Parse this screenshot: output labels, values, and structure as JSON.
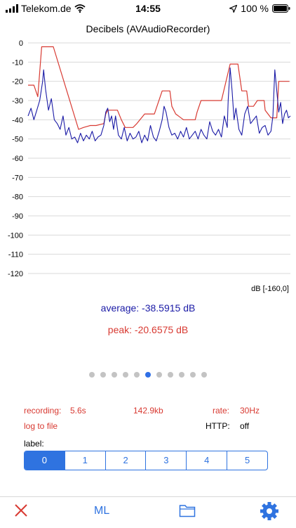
{
  "status_bar": {
    "carrier": "Telekom.de",
    "time": "14:55",
    "battery": "100 %"
  },
  "chart_data": {
    "type": "line",
    "title": "Decibels (AVAudioRecorder)",
    "ylim": [
      -120,
      0
    ],
    "y_ticks": [
      "0",
      "-10",
      "-20",
      "-30",
      "-40",
      "-50",
      "-60",
      "-70",
      "-80",
      "-90",
      "-100",
      "-110",
      "-120"
    ],
    "xlim": [
      0,
      270
    ],
    "grid": true,
    "unit_label": "dB [-160,0]",
    "series": [
      {
        "color": "#d83a32",
        "x": [
          0,
          6,
          10,
          14,
          17,
          20,
          26,
          52,
          57,
          64,
          70,
          78,
          80,
          82,
          90,
          92,
          96,
          100,
          104,
          108,
          112,
          120,
          130,
          138,
          142,
          146,
          148,
          152,
          160,
          166,
          172,
          174,
          178,
          184,
          192,
          199,
          208,
          212,
          216,
          220,
          225,
          227,
          232,
          236,
          239,
          243,
          244,
          247,
          250,
          254,
          256,
          258,
          262,
          264,
          269
        ],
        "values": [
          -22,
          -22,
          -28,
          -2,
          -2,
          -2,
          -2,
          -45,
          -44,
          -43,
          -43,
          -42,
          -37,
          -35,
          -35,
          -35,
          -40,
          -44,
          -44,
          -44,
          -42,
          -37,
          -37,
          -25,
          -25,
          -25,
          -33,
          -37,
          -40,
          -40,
          -40,
          -36,
          -30,
          -30,
          -30,
          -30,
          -11,
          -11,
          -11,
          -25,
          -25,
          -33,
          -33,
          -30,
          -30,
          -30,
          -35,
          -37,
          -39,
          -39,
          -39,
          -20,
          -20,
          -20,
          -20
        ]
      },
      {
        "color": "#1a1aa6",
        "x": [
          0,
          3,
          6,
          9,
          12,
          15,
          16,
          18,
          21,
          24,
          27,
          30,
          33,
          36,
          39,
          42,
          45,
          48,
          51,
          54,
          57,
          60,
          63,
          66,
          69,
          72,
          75,
          78,
          80,
          82,
          84,
          86,
          88,
          90,
          93,
          96,
          99,
          102,
          105,
          108,
          111,
          114,
          117,
          120,
          123,
          126,
          129,
          132,
          135,
          138,
          140,
          142,
          145,
          148,
          151,
          154,
          157,
          160,
          163,
          166,
          169,
          172,
          175,
          178,
          181,
          184,
          187,
          190,
          193,
          196,
          199,
          202,
          205,
          206,
          208,
          210,
          212,
          214,
          217,
          220,
          223,
          226,
          229,
          232,
          235,
          238,
          241,
          244,
          247,
          250,
          252,
          254,
          256,
          258,
          260,
          262,
          264,
          266,
          268,
          270
        ],
        "values": [
          -38,
          -34,
          -40,
          -35,
          -30,
          -20,
          -14,
          -24,
          -35,
          -29,
          -40,
          -42,
          -45,
          -38,
          -48,
          -44,
          -50,
          -49,
          -52,
          -47,
          -51,
          -48,
          -50,
          -46,
          -51,
          -49,
          -48,
          -43,
          -36,
          -34,
          -41,
          -38,
          -45,
          -38,
          -48,
          -50,
          -44,
          -51,
          -47,
          -50,
          -49,
          -46,
          -52,
          -48,
          -51,
          -43,
          -49,
          -51,
          -46,
          -40,
          -33,
          -36,
          -44,
          -48,
          -47,
          -50,
          -46,
          -49,
          -44,
          -50,
          -48,
          -46,
          -50,
          -45,
          -48,
          -50,
          -41,
          -46,
          -48,
          -45,
          -49,
          -38,
          -44,
          -30,
          -13,
          -25,
          -40,
          -34,
          -45,
          -48,
          -37,
          -33,
          -42,
          -40,
          -38,
          -47,
          -44,
          -43,
          -48,
          -46,
          -38,
          -14,
          -25,
          -36,
          -31,
          -42,
          -37,
          -35,
          -39,
          -38
        ]
      }
    ]
  },
  "readouts": {
    "average": "average: -38.5915 dB",
    "peak": "peak: -20.6575 dB"
  },
  "pager": {
    "count": 11,
    "active": 5
  },
  "info": {
    "recording_label": "recording:",
    "recording_value": "5.6s",
    "size": "142.9kb",
    "rate_label": "rate:",
    "rate_value": "30Hz",
    "log_to_file": "log to file",
    "http_label": "HTTP:",
    "http_value": "off"
  },
  "label_selector": {
    "caption": "label:",
    "options": [
      "0",
      "1",
      "2",
      "3",
      "4",
      "5"
    ],
    "selected": 0
  },
  "tab_bar": {
    "ml": "ML"
  },
  "colors": {
    "accent": "#2f73e0",
    "peak_red": "#d83a32",
    "average_blue": "#1a1aa6"
  },
  "icons": [
    "signal-icon",
    "wifi-icon",
    "location-icon",
    "battery-icon",
    "close-icon",
    "folder-icon",
    "gear-icon"
  ]
}
